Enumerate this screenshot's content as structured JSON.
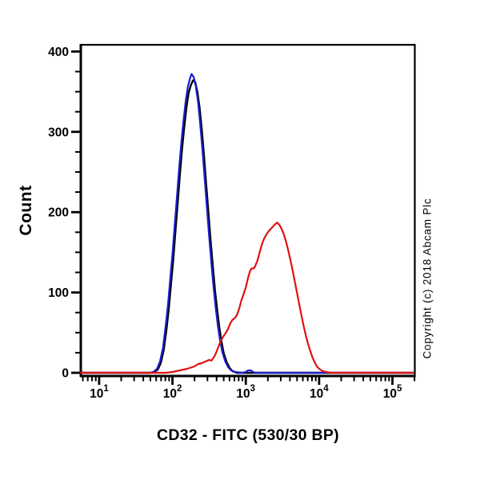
{
  "figure": {
    "background_color": "#ffffff",
    "axis_color": "#000000",
    "copyright": "Copyright (c) 2018 Abcam Plc"
  },
  "chart_data": {
    "type": "line",
    "subtype": "flow-cytometry-histogram",
    "title": "",
    "xlabel": "CD32 - FITC (530/30 BP)",
    "ylabel": "Count",
    "x_scale": "log10",
    "xlim_log10": [
      0.75,
      5.305
    ],
    "ylim": [
      0,
      410
    ],
    "grid": false,
    "legend": "none",
    "y_ticks": [
      0,
      100,
      200,
      300,
      400
    ],
    "y_minor_step": 25,
    "x_ticks": [
      {
        "base": "10",
        "exp": "1",
        "log10": 1
      },
      {
        "base": "10",
        "exp": "2",
        "log10": 2
      },
      {
        "base": "10",
        "exp": "3",
        "log10": 3
      },
      {
        "base": "10",
        "exp": "4",
        "log10": 4
      },
      {
        "base": "10",
        "exp": "5",
        "log10": 5
      }
    ],
    "x_minor_mantissas": [
      2,
      3,
      4,
      5,
      6,
      7,
      8,
      9
    ],
    "series": [
      {
        "name": "control-black",
        "color": "#000000",
        "stroke_width": 2.4,
        "peak": {
          "x_log10": 2.28,
          "count": 364
        },
        "points": [
          [
            0.75,
            0
          ],
          [
            1.1,
            0
          ],
          [
            1.4,
            0
          ],
          [
            1.6,
            0
          ],
          [
            1.7,
            0
          ],
          [
            1.75,
            1
          ],
          [
            1.8,
            4
          ],
          [
            1.84,
            12
          ],
          [
            1.88,
            28
          ],
          [
            1.92,
            55
          ],
          [
            1.95,
            80
          ],
          [
            1.98,
            110
          ],
          [
            2.01,
            140
          ],
          [
            2.04,
            175
          ],
          [
            2.07,
            210
          ],
          [
            2.1,
            245
          ],
          [
            2.13,
            278
          ],
          [
            2.16,
            305
          ],
          [
            2.19,
            330
          ],
          [
            2.22,
            348
          ],
          [
            2.25,
            358
          ],
          [
            2.28,
            364
          ],
          [
            2.31,
            362
          ],
          [
            2.34,
            350
          ],
          [
            2.37,
            330
          ],
          [
            2.4,
            303
          ],
          [
            2.43,
            270
          ],
          [
            2.46,
            235
          ],
          [
            2.49,
            200
          ],
          [
            2.52,
            165
          ],
          [
            2.55,
            133
          ],
          [
            2.58,
            103
          ],
          [
            2.61,
            78
          ],
          [
            2.64,
            56
          ],
          [
            2.67,
            38
          ],
          [
            2.7,
            24
          ],
          [
            2.74,
            13
          ],
          [
            2.78,
            6
          ],
          [
            2.82,
            2
          ],
          [
            2.88,
            0
          ],
          [
            3.5,
            0
          ],
          [
            4.4,
            0
          ],
          [
            5.28,
            0
          ]
        ]
      },
      {
        "name": "control-blue",
        "color": "#1c1ccf",
        "stroke_width": 2.2,
        "peak": {
          "x_log10": 2.26,
          "count": 372
        },
        "points": [
          [
            0.75,
            0
          ],
          [
            1.1,
            0
          ],
          [
            1.4,
            0
          ],
          [
            1.6,
            0
          ],
          [
            1.69,
            0
          ],
          [
            1.74,
            1
          ],
          [
            1.79,
            5
          ],
          [
            1.83,
            14
          ],
          [
            1.87,
            31
          ],
          [
            1.91,
            60
          ],
          [
            1.94,
            86
          ],
          [
            1.97,
            117
          ],
          [
            2.0,
            148
          ],
          [
            2.03,
            183
          ],
          [
            2.06,
            218
          ],
          [
            2.09,
            253
          ],
          [
            2.12,
            286
          ],
          [
            2.15,
            313
          ],
          [
            2.18,
            338
          ],
          [
            2.21,
            356
          ],
          [
            2.24,
            367
          ],
          [
            2.26,
            372
          ],
          [
            2.29,
            368
          ],
          [
            2.32,
            356
          ],
          [
            2.35,
            336
          ],
          [
            2.38,
            308
          ],
          [
            2.41,
            276
          ],
          [
            2.44,
            241
          ],
          [
            2.47,
            205
          ],
          [
            2.5,
            170
          ],
          [
            2.53,
            137
          ],
          [
            2.56,
            107
          ],
          [
            2.59,
            81
          ],
          [
            2.62,
            58
          ],
          [
            2.65,
            40
          ],
          [
            2.68,
            26
          ],
          [
            2.72,
            14
          ],
          [
            2.76,
            7
          ],
          [
            2.8,
            3
          ],
          [
            2.86,
            1
          ],
          [
            2.95,
            0
          ],
          [
            3.0,
            1
          ],
          [
            3.03,
            3
          ],
          [
            3.07,
            3
          ],
          [
            3.1,
            1
          ],
          [
            3.14,
            0
          ],
          [
            4.2,
            0
          ],
          [
            5.28,
            0
          ]
        ]
      },
      {
        "name": "cd32-fitc-red",
        "color": "#e01212",
        "stroke_width": 2.2,
        "peak": {
          "x_log10": 3.43,
          "count": 187
        },
        "points": [
          [
            0.75,
            0
          ],
          [
            1.2,
            0
          ],
          [
            1.6,
            0
          ],
          [
            1.9,
            0
          ],
          [
            2.0,
            1
          ],
          [
            2.1,
            3
          ],
          [
            2.2,
            5
          ],
          [
            2.3,
            8
          ],
          [
            2.35,
            11
          ],
          [
            2.4,
            12
          ],
          [
            2.45,
            14
          ],
          [
            2.5,
            16
          ],
          [
            2.53,
            15
          ],
          [
            2.57,
            20
          ],
          [
            2.6,
            26
          ],
          [
            2.63,
            33
          ],
          [
            2.66,
            40
          ],
          [
            2.7,
            46
          ],
          [
            2.73,
            50
          ],
          [
            2.76,
            55
          ],
          [
            2.79,
            62
          ],
          [
            2.82,
            66
          ],
          [
            2.85,
            68
          ],
          [
            2.88,
            72
          ],
          [
            2.91,
            80
          ],
          [
            2.94,
            90
          ],
          [
            2.97,
            98
          ],
          [
            3.0,
            106
          ],
          [
            3.03,
            118
          ],
          [
            3.06,
            127
          ],
          [
            3.08,
            130
          ],
          [
            3.11,
            130
          ],
          [
            3.13,
            133
          ],
          [
            3.16,
            140
          ],
          [
            3.19,
            150
          ],
          [
            3.22,
            160
          ],
          [
            3.25,
            167
          ],
          [
            3.28,
            172
          ],
          [
            3.31,
            176
          ],
          [
            3.34,
            179
          ],
          [
            3.37,
            182
          ],
          [
            3.4,
            185
          ],
          [
            3.43,
            187
          ],
          [
            3.46,
            184
          ],
          [
            3.49,
            179
          ],
          [
            3.52,
            172
          ],
          [
            3.55,
            163
          ],
          [
            3.58,
            152
          ],
          [
            3.61,
            140
          ],
          [
            3.64,
            127
          ],
          [
            3.67,
            113
          ],
          [
            3.7,
            99
          ],
          [
            3.73,
            85
          ],
          [
            3.76,
            71
          ],
          [
            3.79,
            58
          ],
          [
            3.82,
            46
          ],
          [
            3.85,
            36
          ],
          [
            3.88,
            27
          ],
          [
            3.91,
            19
          ],
          [
            3.94,
            13
          ],
          [
            3.97,
            8
          ],
          [
            4.0,
            5
          ],
          [
            4.05,
            2
          ],
          [
            4.1,
            1
          ],
          [
            4.15,
            0
          ],
          [
            4.6,
            0
          ],
          [
            5.28,
            0
          ]
        ]
      }
    ]
  }
}
